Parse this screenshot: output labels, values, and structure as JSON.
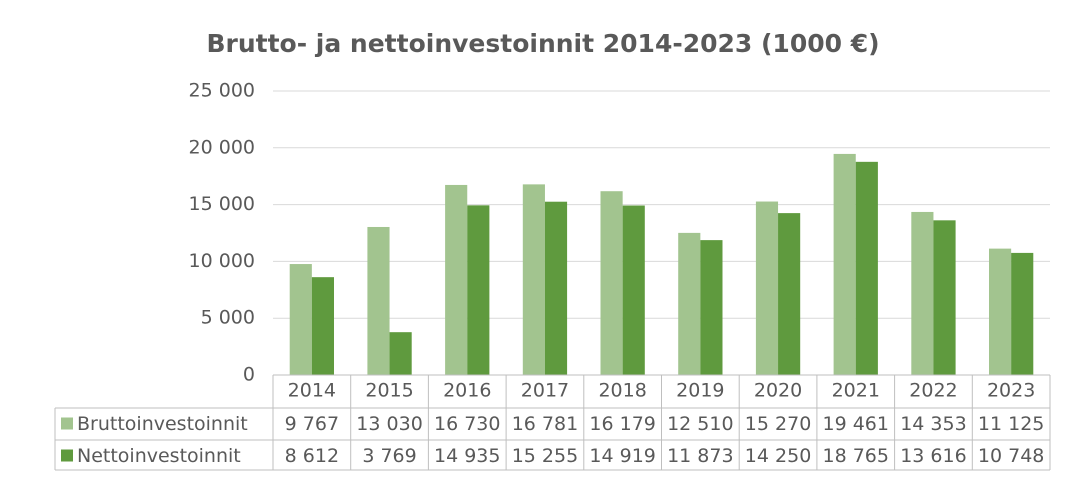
{
  "chart_data": {
    "type": "bar",
    "title": "Brutto- ja nettoinvestoinnit 2014-2023 (1000 €)",
    "categories": [
      "2014",
      "2015",
      "2016",
      "2017",
      "2018",
      "2019",
      "2020",
      "2021",
      "2022",
      "2023"
    ],
    "series": [
      {
        "name": "Bruttoinvestoinnit",
        "color": "#a2c48f",
        "values": [
          9767,
          13030,
          16730,
          16781,
          16179,
          12510,
          15270,
          19461,
          14353,
          11125
        ],
        "value_labels": [
          "9 767",
          "13 030",
          "16 730",
          "16 781",
          "16 179",
          "12 510",
          "15 270",
          "19 461",
          "14 353",
          "11 125"
        ]
      },
      {
        "name": "Nettoinvestoinnit",
        "color": "#5f9a3e",
        "values": [
          8612,
          3769,
          14935,
          15255,
          14919,
          11873,
          14250,
          18765,
          13616,
          10748
        ],
        "value_labels": [
          "8 612",
          "3 769",
          "14 935",
          "15 255",
          "14 919",
          "11 873",
          "14 250",
          "18 765",
          "13 616",
          "10 748"
        ]
      }
    ],
    "ylim": [
      0,
      25000
    ],
    "yticks": [
      0,
      {
        "value": 5000,
        "label": "5 000"
      },
      {
        "value": 10000,
        "label": "10 000"
      },
      {
        "value": 15000,
        "label": "15 000"
      },
      {
        "value": 20000,
        "label": "20 000"
      },
      {
        "value": 25000,
        "label": "25 000"
      }
    ],
    "grid": true
  }
}
